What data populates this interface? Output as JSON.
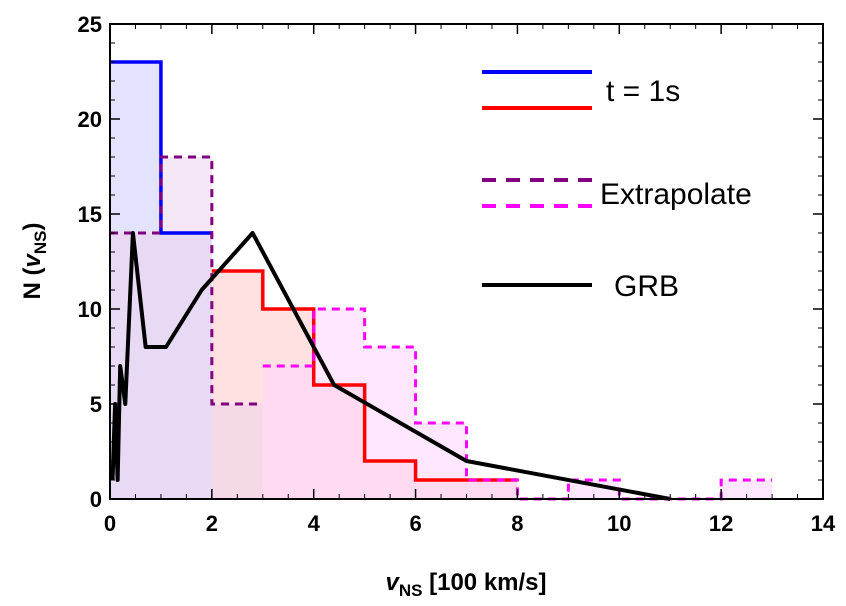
{
  "chart_data": {
    "type": "histogram",
    "xlabel": "vNS [100 km/s]",
    "xlabel_parts": {
      "sym": "v",
      "sub": "NS",
      "rest": " [100 km/s]"
    },
    "ylabel": "N (vNS)",
    "ylabel_parts": {
      "pre": "N (",
      "sym": "v",
      "sub": "NS",
      "post": ")"
    },
    "xlim": [
      0,
      14
    ],
    "ylim": [
      0,
      25
    ],
    "xticks": [
      "0",
      "2",
      "4",
      "6",
      "8",
      "10",
      "12",
      "14"
    ],
    "yticks": [
      "0",
      "5",
      "10",
      "15",
      "20",
      "25"
    ],
    "xtick_values": [
      0,
      2,
      4,
      6,
      8,
      10,
      12,
      14
    ],
    "ytick_values": [
      0,
      5,
      10,
      15,
      20,
      25
    ],
    "series": [
      {
        "name": "t = 1s",
        "kind": "step",
        "color": "#0000ff",
        "fill": "#ccccff",
        "dash": false,
        "edges": [
          0,
          1,
          2
        ],
        "counts": [
          23,
          14
        ]
      },
      {
        "kind": "step",
        "color": "#ff0000",
        "fill": "#ffc8c8",
        "dash": false,
        "edges": [
          2,
          3,
          4,
          5,
          6,
          7,
          8
        ],
        "counts": [
          12,
          10,
          6,
          2,
          1,
          1
        ]
      },
      {
        "name": "Extrapolate",
        "kind": "step",
        "color": "#800080",
        "fill": "#ecd3ec",
        "dash": true,
        "edges": [
          0,
          1,
          2,
          3
        ],
        "counts": [
          14,
          18,
          5
        ]
      },
      {
        "kind": "step",
        "color": "#ff00ff",
        "fill": "#ffd6ff",
        "dash": true,
        "edges": [
          3,
          4,
          5,
          6,
          7,
          8,
          9,
          10,
          11,
          12,
          13
        ],
        "counts": [
          7,
          10,
          8,
          4,
          1,
          0,
          1,
          0,
          0,
          1
        ]
      },
      {
        "name": "GRB",
        "kind": "line",
        "color": "#000000",
        "x": [
          0.05,
          0.1,
          0.15,
          0.2,
          0.3,
          0.45,
          0.7,
          1.1,
          1.8,
          2.8,
          4.4,
          7.0,
          11.0
        ],
        "y": [
          1,
          5,
          1,
          7,
          5,
          14,
          8,
          8,
          11,
          14,
          6,
          2,
          0
        ]
      }
    ],
    "legend": {
      "position": "top-right",
      "label_t1s": "t = 1s",
      "label_extrapolate": "Extrapolate",
      "label_grb": "GRB"
    },
    "grid": false
  }
}
